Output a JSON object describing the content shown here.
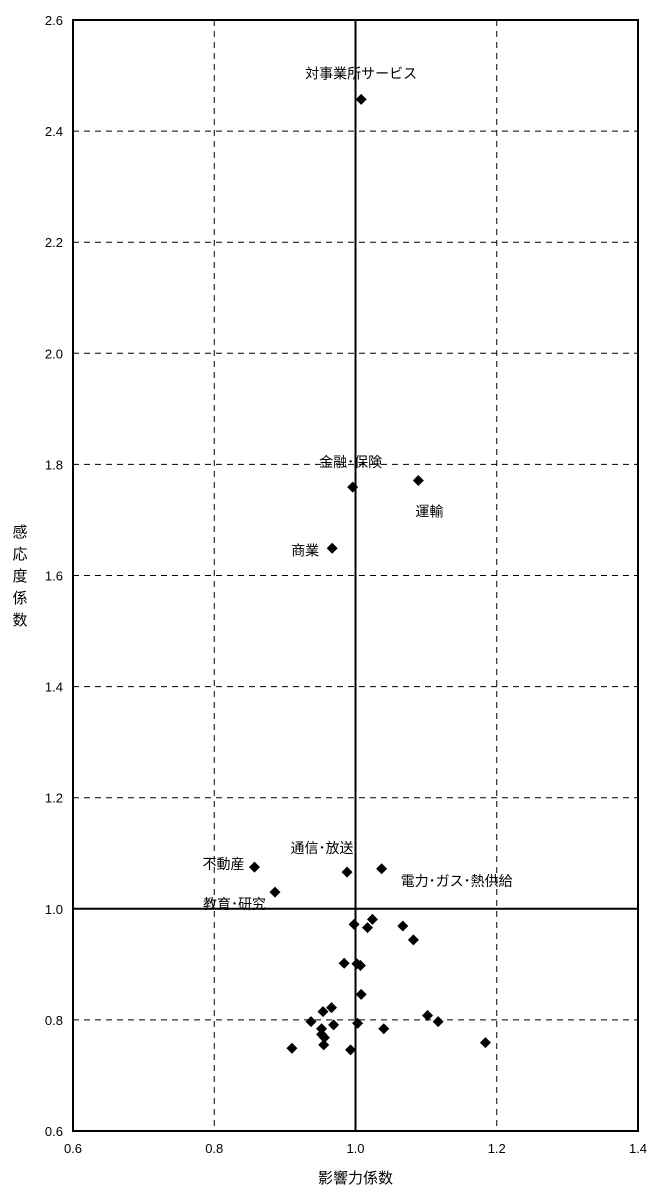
{
  "chart_data": {
    "type": "scatter",
    "xlabel": "影響力係数",
    "ylabel": "感応度係数",
    "xlim": [
      0.6,
      1.4
    ],
    "ylim": [
      0.6,
      2.6
    ],
    "xticks": [
      "0.6",
      "0.8",
      "1.0",
      "1.2",
      "1.4"
    ],
    "yticks": [
      "0.6",
      "0.8",
      "1.0",
      "1.2",
      "1.4",
      "1.6",
      "1.8",
      "2.0",
      "2.2",
      "2.4",
      "2.6"
    ],
    "reference_lines": {
      "x": 1.0,
      "y": 1.0
    },
    "grid": "dashed",
    "labeled_points": [
      {
        "label": "対事業所サービス",
        "x": 1.008,
        "y": 2.457
      },
      {
        "label": "金融･保険",
        "x": 0.996,
        "y": 1.759
      },
      {
        "label": "運輸",
        "x": 1.089,
        "y": 1.771
      },
      {
        "label": "商業",
        "x": 0.967,
        "y": 1.649
      },
      {
        "label": "通信･放送",
        "x": 0.988,
        "y": 1.066
      },
      {
        "label": "電力･ガス･熱供給",
        "x": 1.037,
        "y": 1.072
      },
      {
        "label": "不動産",
        "x": 0.857,
        "y": 1.075
      },
      {
        "label": "教育･研究",
        "x": 0.886,
        "y": 1.03
      }
    ],
    "points": [
      {
        "x": 0.998,
        "y": 0.972
      },
      {
        "x": 1.017,
        "y": 0.966
      },
      {
        "x": 1.024,
        "y": 0.981
      },
      {
        "x": 1.067,
        "y": 0.969
      },
      {
        "x": 1.082,
        "y": 0.944
      },
      {
        "x": 0.984,
        "y": 0.902
      },
      {
        "x": 1.002,
        "y": 0.901
      },
      {
        "x": 1.007,
        "y": 0.898
      },
      {
        "x": 1.008,
        "y": 0.846
      },
      {
        "x": 0.954,
        "y": 0.815
      },
      {
        "x": 0.966,
        "y": 0.822
      },
      {
        "x": 0.937,
        "y": 0.797
      },
      {
        "x": 0.969,
        "y": 0.791
      },
      {
        "x": 0.952,
        "y": 0.784
      },
      {
        "x": 0.952,
        "y": 0.774
      },
      {
        "x": 0.956,
        "y": 0.768
      },
      {
        "x": 0.955,
        "y": 0.755
      },
      {
        "x": 0.91,
        "y": 0.749
      },
      {
        "x": 0.993,
        "y": 0.746
      },
      {
        "x": 1.003,
        "y": 0.794
      },
      {
        "x": 1.04,
        "y": 0.784
      },
      {
        "x": 1.102,
        "y": 0.808
      },
      {
        "x": 1.117,
        "y": 0.797
      },
      {
        "x": 1.184,
        "y": 0.759
      }
    ]
  }
}
